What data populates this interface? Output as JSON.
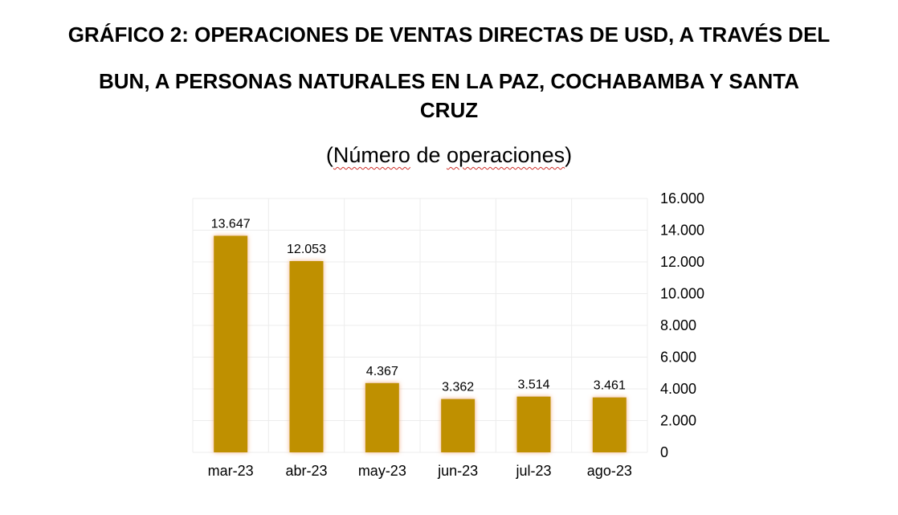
{
  "title": {
    "line1": "GRÁFICO 2: OPERACIONES DE VENTAS DIRECTAS DE USD, A TRAVÉS DEL",
    "line2": "BUN, A PERSONAS NATURALES EN LA PAZ, COCHABAMBA Y SANTA",
    "line3": "CRUZ"
  },
  "subtitle": {
    "open": "(",
    "word1": "Número",
    "mid": " de ",
    "word2": "operaciones",
    "close": ")"
  },
  "chart_data": {
    "type": "bar",
    "categories": [
      "mar-23",
      "abr-23",
      "may-23",
      "jun-23",
      "jul-23",
      "ago-23"
    ],
    "values": [
      13647,
      12053,
      4367,
      3362,
      3514,
      3461
    ],
    "value_labels": [
      "13.647",
      "12.053",
      "4.367",
      "3.362",
      "3.514",
      "3.461"
    ],
    "ylim": [
      0,
      16000
    ],
    "y_ticks": [
      0,
      2000,
      4000,
      6000,
      8000,
      10000,
      12000,
      14000,
      16000
    ],
    "y_tick_labels": [
      "0",
      "2.000",
      "4.000",
      "6.000",
      "8.000",
      "10.000",
      "12.000",
      "14.000",
      "16.000"
    ],
    "y_axis_side": "right",
    "grid": true,
    "bar_color": "#BF9000",
    "bar_glow_color": "#F4B183"
  }
}
